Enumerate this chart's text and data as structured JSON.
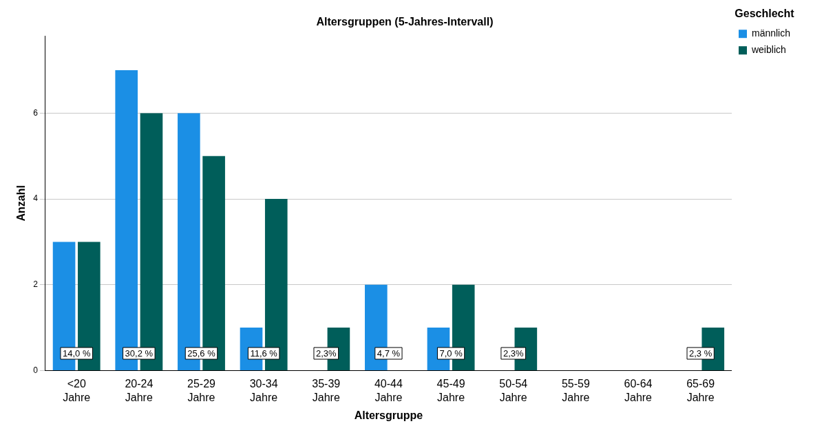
{
  "chart_data": {
    "type": "bar",
    "title": "Altersgruppen (5-Jahres-Intervall)",
    "xlabel": "Altersgruppe",
    "ylabel": "Anzahl",
    "legend_title": "Geschlecht",
    "categories": [
      "<20\nJahre",
      "20-24\nJahre",
      "25-29\nJahre",
      "30-34\nJahre",
      "35-39\nJahre",
      "40-44\nJahre",
      "45-49\nJahre",
      "50-54\nJahre",
      "55-59\nJahre",
      "60-64\nJahre",
      "65-69\nJahre"
    ],
    "series": [
      {
        "name": "männlich",
        "color": "#1b8fe5",
        "values": [
          3,
          7,
          6,
          1,
          0,
          2,
          1,
          0,
          0,
          0,
          0
        ]
      },
      {
        "name": "weiblich",
        "color": "#005e5a",
        "values": [
          3,
          6,
          5,
          4,
          1,
          0,
          2,
          1,
          0,
          0,
          1
        ]
      }
    ],
    "ylim": [
      0,
      7.8
    ],
    "yticks": [
      0,
      2,
      4,
      6
    ],
    "grid": "y",
    "legend": "top right",
    "annotations": [
      {
        "text": "14,0 %",
        "x": "<20\nJahre",
        "y": 0.4
      },
      {
        "text": "30,2 %",
        "x": "20-24\nJahre",
        "y": 0.4
      },
      {
        "text": "25,6 %",
        "x": "25-29\nJahre",
        "y": 0.4
      },
      {
        "text": "11,6 %",
        "x": "30-34\nJahre",
        "y": 0.4
      },
      {
        "text": "2,3%",
        "x": "35-39\nJahre",
        "y": 0.4
      },
      {
        "text": "4,7 %",
        "x": "40-44\nJahre",
        "y": 0.4
      },
      {
        "text": "7,0 %",
        "x": "45-49\nJahre",
        "y": 0.4
      },
      {
        "text": "2,3%",
        "x": "50-54\nJahre",
        "y": 0.4
      },
      {
        "text": "2,3 %",
        "x": "65-69\nJahre",
        "y": 0.4
      }
    ]
  }
}
